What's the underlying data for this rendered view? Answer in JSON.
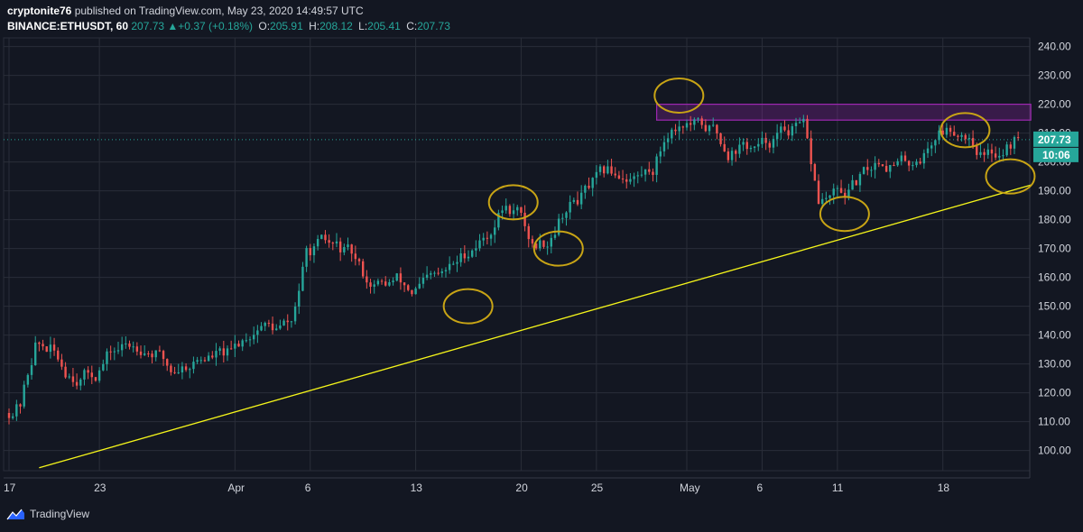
{
  "header": {
    "author": "cryptonite76",
    "published": "published on TradingView.com, May 23, 2020 14:49:57 UTC",
    "symbol": "BINANCE:ETHUSDT, 60",
    "last": "207.73",
    "change": "+0.37 (+0.18%)",
    "o_label": "O:",
    "o": "205.91",
    "h_label": "H:",
    "h": "208.12",
    "l_label": "L:",
    "l": "205.41",
    "c_label": "C:",
    "c": "207.73"
  },
  "footer": {
    "brand": "TradingView"
  },
  "colors": {
    "background": "#131722",
    "up": "#26a69a",
    "down": "#ef5350",
    "grid": "#2a2e39",
    "trendline": "#f5f51a",
    "circles": "#c8a415",
    "resistance_zone": "#9c27b0"
  },
  "chart_data": {
    "type": "candlestick",
    "symbol": "ETHUSDT",
    "exchange": "BINANCE",
    "interval": "60",
    "ylim": [
      93,
      243
    ],
    "yticks": [
      100,
      110,
      120,
      130,
      140,
      150,
      160,
      170,
      180,
      190,
      200,
      210,
      220,
      230,
      240
    ],
    "ytick_labels": [
      "100.00",
      "110.00",
      "120.00",
      "130.00",
      "140.00",
      "150.00",
      "160.00",
      "170.00",
      "180.00",
      "190.00",
      "200.00",
      "210.00",
      "220.00",
      "230.00",
      "240.00"
    ],
    "x_start": "2020-03-17",
    "x_end": "2020-05-23",
    "xticks": [
      {
        "date": "2020-03-17",
        "label": "17"
      },
      {
        "date": "2020-03-23",
        "label": "23"
      },
      {
        "date": "2020-04-01",
        "label": "Apr"
      },
      {
        "date": "2020-04-06",
        "label": "6"
      },
      {
        "date": "2020-04-13",
        "label": "13"
      },
      {
        "date": "2020-04-20",
        "label": "20"
      },
      {
        "date": "2020-04-25",
        "label": "25"
      },
      {
        "date": "2020-05-01",
        "label": "May"
      },
      {
        "date": "2020-05-06",
        "label": "6"
      },
      {
        "date": "2020-05-11",
        "label": "11"
      },
      {
        "date": "2020-05-18",
        "label": "18"
      }
    ],
    "price_path": [
      [
        "2020-03-17",
        113
      ],
      [
        "2020-03-18",
        116
      ],
      [
        "2020-03-19",
        137
      ],
      [
        "2020-03-20",
        135
      ],
      [
        "2020-03-21",
        128
      ],
      [
        "2020-03-22",
        126
      ],
      [
        "2020-03-23",
        127
      ],
      [
        "2020-03-24",
        134
      ],
      [
        "2020-03-25",
        136
      ],
      [
        "2020-03-26",
        137
      ],
      [
        "2020-03-27",
        134
      ],
      [
        "2020-03-28",
        128
      ],
      [
        "2020-03-29",
        130
      ],
      [
        "2020-03-30",
        132
      ],
      [
        "2020-03-31",
        133
      ],
      [
        "2020-04-01",
        133
      ],
      [
        "2020-04-02",
        140
      ],
      [
        "2020-04-03",
        144
      ],
      [
        "2020-04-04",
        142
      ],
      [
        "2020-04-05",
        144
      ],
      [
        "2020-04-06",
        168
      ],
      [
        "2020-04-07",
        171
      ],
      [
        "2020-04-08",
        170
      ],
      [
        "2020-04-09",
        167
      ],
      [
        "2020-04-10",
        159
      ],
      [
        "2020-04-11",
        157
      ],
      [
        "2020-04-12",
        159
      ],
      [
        "2020-04-13",
        155
      ],
      [
        "2020-04-14",
        158
      ],
      [
        "2020-04-15",
        160
      ],
      [
        "2020-04-16",
        165
      ],
      [
        "2020-04-17",
        171
      ],
      [
        "2020-04-18",
        175
      ],
      [
        "2020-04-19",
        184
      ],
      [
        "2020-04-20",
        183
      ],
      [
        "2020-04-21",
        171
      ],
      [
        "2020-04-22",
        173
      ],
      [
        "2020-04-23",
        183
      ],
      [
        "2020-04-24",
        187
      ],
      [
        "2020-04-25",
        192
      ],
      [
        "2020-04-26",
        196
      ],
      [
        "2020-04-27",
        196
      ],
      [
        "2020-04-28",
        195
      ],
      [
        "2020-04-29",
        198
      ],
      [
        "2020-04-30",
        211
      ],
      [
        "2020-05-01",
        214
      ],
      [
        "2020-05-02",
        212
      ],
      [
        "2020-05-03",
        211
      ],
      [
        "2020-05-04",
        204
      ],
      [
        "2020-05-05",
        206
      ],
      [
        "2020-05-06",
        204
      ],
      [
        "2020-05-07",
        208
      ],
      [
        "2020-05-08",
        211
      ],
      [
        "2020-05-09",
        211
      ],
      [
        "2020-05-10",
        186
      ],
      [
        "2020-05-11",
        188
      ],
      [
        "2020-05-12",
        189
      ],
      [
        "2020-05-13",
        195
      ],
      [
        "2020-05-14",
        201
      ],
      [
        "2020-05-15",
        199
      ],
      [
        "2020-05-16",
        200
      ],
      [
        "2020-05-17",
        203
      ],
      [
        "2020-05-18",
        211
      ],
      [
        "2020-05-19",
        212
      ],
      [
        "2020-05-20",
        210
      ],
      [
        "2020-05-21",
        202
      ],
      [
        "2020-05-22",
        204
      ],
      [
        "2020-05-23",
        207.73
      ]
    ],
    "last_price": 207.73,
    "last_price_label": "207.73",
    "countdown_label": "10:06",
    "annotations": {
      "trendline": {
        "from": [
          "2020-03-19",
          94
        ],
        "to": [
          "2020-05-23",
          192
        ]
      },
      "resistance_zone": {
        "from": "2020-04-29",
        "to": "2020-05-23",
        "low": 214.5,
        "high": 220
      },
      "circles": [
        {
          "date": "2020-04-16",
          "price": 150
        },
        {
          "date": "2020-04-19",
          "price": 186
        },
        {
          "date": "2020-04-22",
          "price": 170
        },
        {
          "date": "2020-04-30",
          "price": 223
        },
        {
          "date": "2020-05-11",
          "price": 182
        },
        {
          "date": "2020-05-19",
          "price": 211
        },
        {
          "date": "2020-05-22",
          "price": 195
        }
      ]
    }
  }
}
